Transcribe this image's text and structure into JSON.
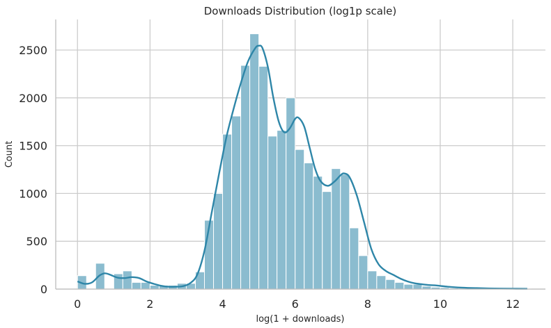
{
  "chart_data": {
    "type": "bar",
    "subtype": "histogram-with-kde",
    "title": "Downloads Distribution (log1p scale)",
    "xlabel": "log(1 + downloads)",
    "ylabel": "Count",
    "xlim": [
      -0.6,
      12.9
    ],
    "ylim": [
      0,
      2820
    ],
    "x_ticks": [
      0,
      2,
      4,
      6,
      8,
      10,
      12
    ],
    "y_ticks": [
      0,
      500,
      1000,
      1500,
      2000,
      2500
    ],
    "grid": true,
    "legend": "none",
    "colors": {
      "bar": "#8bbccf",
      "kde": "#2e86a8",
      "grid": "#cccccc"
    },
    "bin_edges": [
      0.0,
      0.25,
      0.5,
      0.75,
      1.0,
      1.25,
      1.5,
      1.75,
      2.0,
      2.25,
      2.5,
      2.75,
      3.0,
      3.25,
      3.5,
      3.75,
      4.0,
      4.25,
      4.5,
      4.75,
      5.0,
      5.25,
      5.5,
      5.75,
      6.0,
      6.25,
      6.5,
      6.75,
      7.0,
      7.25,
      7.5,
      7.75,
      8.0,
      8.25,
      8.5,
      8.75,
      9.0,
      9.25,
      9.5,
      9.75,
      10.0,
      10.25,
      10.5,
      10.75,
      11.0,
      11.25,
      11.5,
      11.75,
      12.0,
      12.25,
      12.5
    ],
    "counts": [
      140,
      0,
      270,
      0,
      160,
      190,
      70,
      70,
      40,
      40,
      40,
      60,
      60,
      180,
      720,
      1000,
      1620,
      1810,
      2340,
      2670,
      2330,
      1600,
      1660,
      2000,
      1460,
      1320,
      1180,
      1020,
      1260,
      1200,
      640,
      350,
      190,
      140,
      100,
      70,
      50,
      50,
      30,
      20,
      15,
      10,
      8,
      6,
      5,
      4,
      3,
      3,
      3,
      3
    ],
    "kde": {
      "x": [
        0.0,
        0.2,
        0.4,
        0.6,
        0.75,
        0.9,
        1.1,
        1.3,
        1.5,
        1.7,
        1.9,
        2.1,
        2.3,
        2.5,
        2.7,
        2.9,
        3.1,
        3.3,
        3.5,
        3.7,
        3.9,
        4.1,
        4.3,
        4.5,
        4.7,
        4.9,
        5.0,
        5.1,
        5.25,
        5.4,
        5.55,
        5.7,
        5.85,
        6.0,
        6.1,
        6.25,
        6.4,
        6.55,
        6.7,
        6.9,
        7.1,
        7.25,
        7.35,
        7.5,
        7.7,
        7.9,
        8.1,
        8.3,
        8.5,
        8.7,
        8.9,
        9.1,
        9.3,
        9.5,
        9.7,
        9.9,
        10.2,
        10.6,
        11.0,
        11.5,
        12.0,
        12.4
      ],
      "y": [
        80,
        55,
        70,
        140,
        165,
        150,
        120,
        115,
        125,
        115,
        80,
        55,
        35,
        25,
        25,
        30,
        60,
        150,
        400,
        800,
        1200,
        1580,
        1880,
        2150,
        2380,
        2520,
        2545,
        2520,
        2320,
        2000,
        1750,
        1640,
        1680,
        1780,
        1790,
        1700,
        1480,
        1260,
        1130,
        1080,
        1130,
        1190,
        1210,
        1170,
        980,
        700,
        420,
        260,
        190,
        150,
        110,
        80,
        60,
        50,
        42,
        38,
        25,
        15,
        10,
        6,
        4,
        3
      ]
    }
  }
}
